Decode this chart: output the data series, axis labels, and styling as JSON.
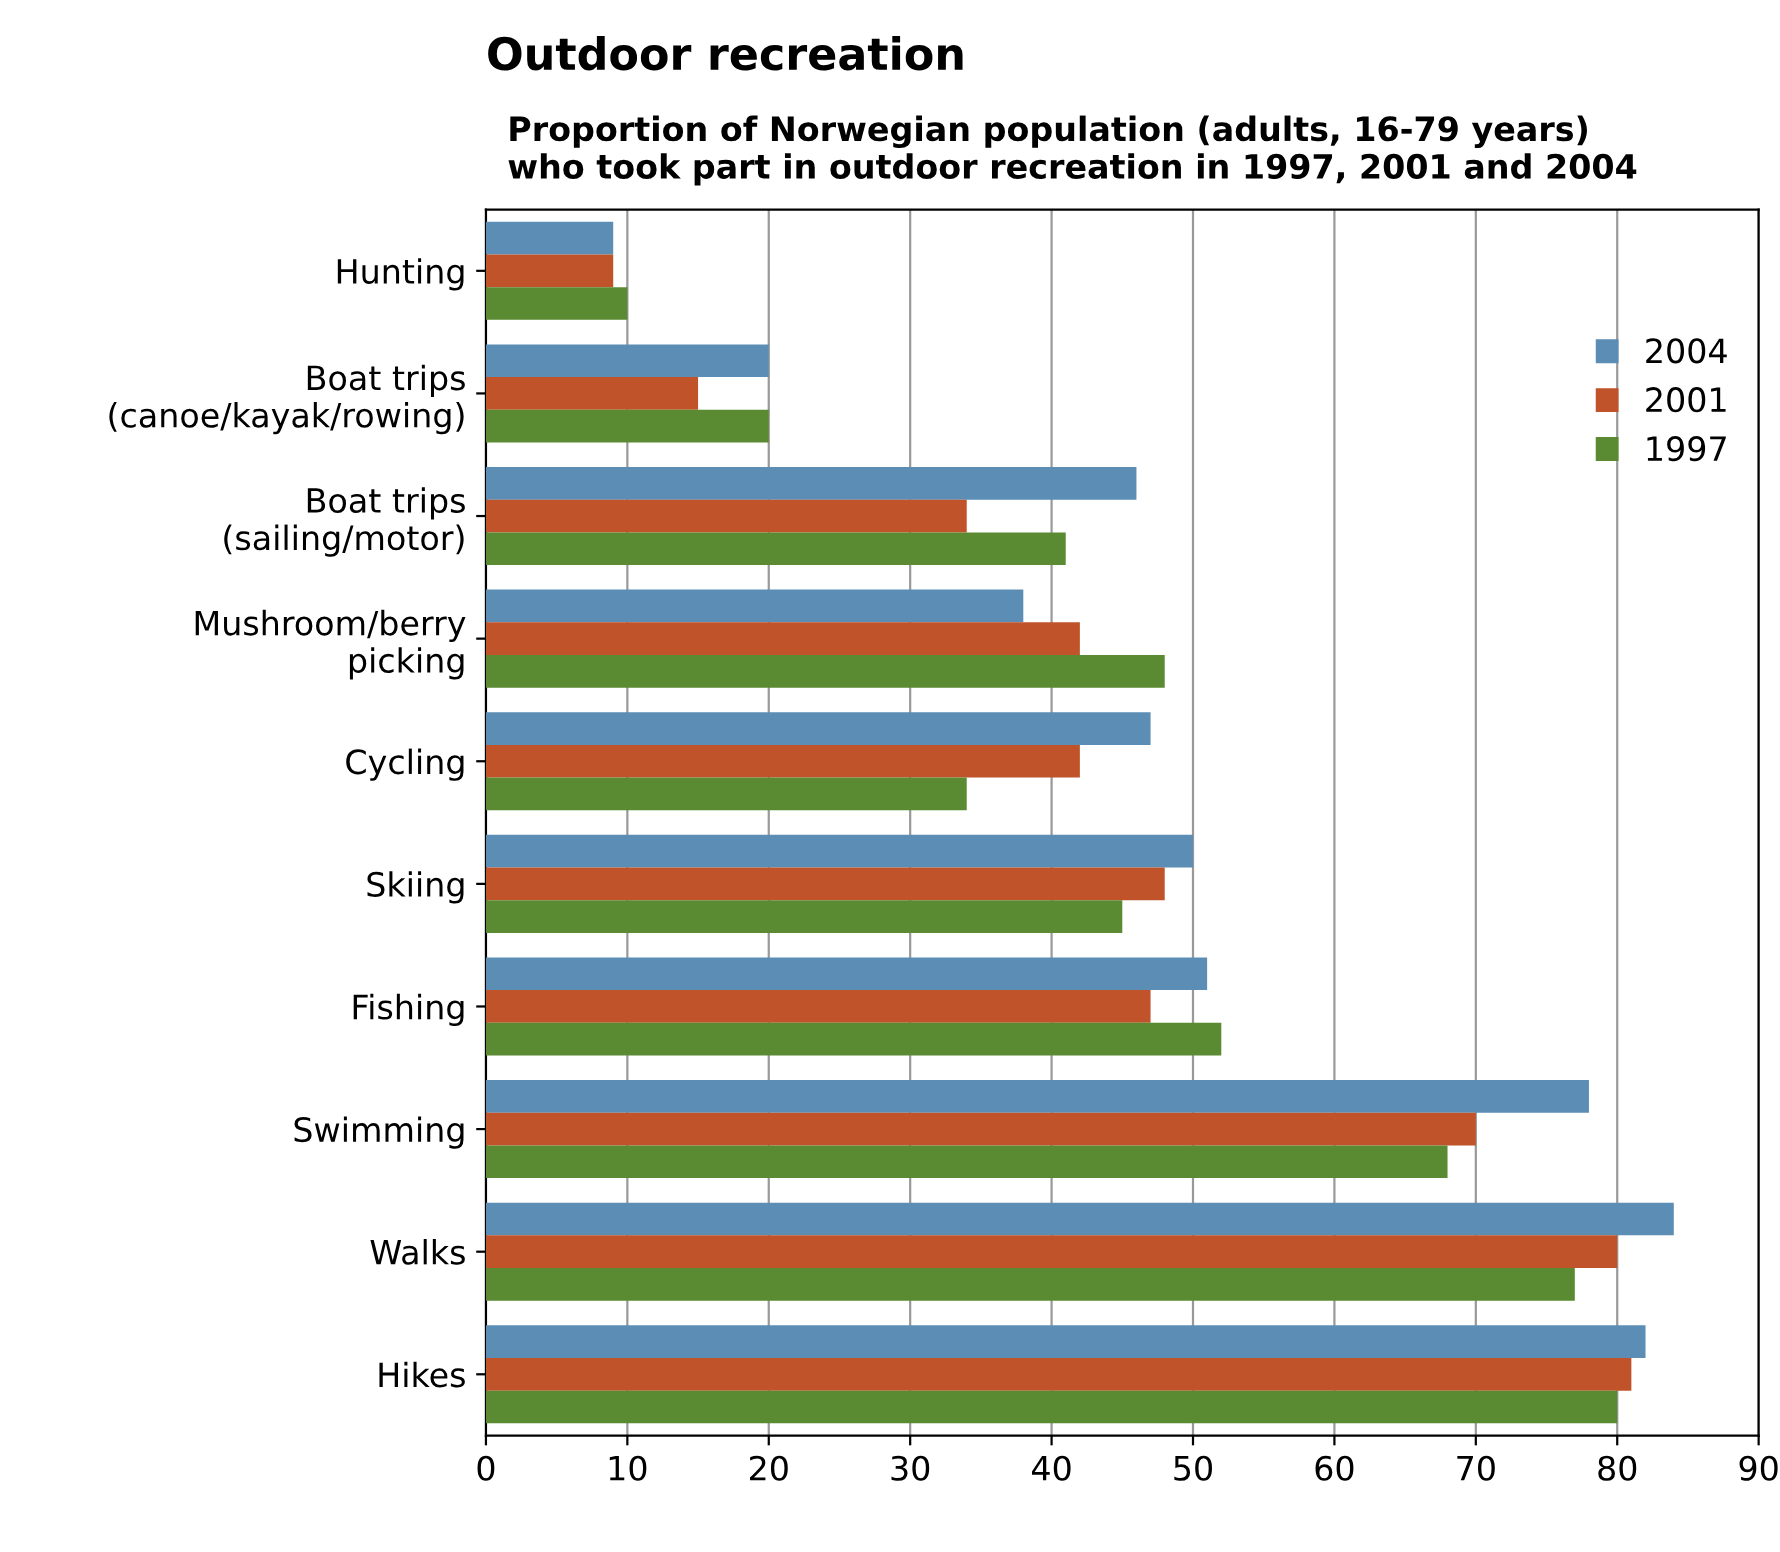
{
  "chart_data": {
    "type": "bar",
    "orientation": "horizontal",
    "title": "Outdoor recreation",
    "subtitle": "Proportion of Norwegian population (adults, 16-79 years)\nwho took part in outdoor recreation in 1997, 2001 and 2004",
    "categories": [
      "Hunting",
      "Boat trips\n(canoe/kayak/rowing)",
      "Boat trips\n(sailing/motor)",
      "Mushroom/berry\npicking",
      "Cycling",
      "Skiing",
      "Fishing",
      "Swimming",
      "Walks",
      "Hikes"
    ],
    "series": [
      {
        "name": "2004",
        "color": "#5b8db5",
        "values": [
          9,
          20,
          46,
          38,
          47,
          50,
          51,
          78,
          84,
          82
        ]
      },
      {
        "name": "2001",
        "color": "#c0532a",
        "values": [
          9,
          15,
          34,
          42,
          42,
          48,
          47,
          70,
          80,
          81
        ]
      },
      {
        "name": "1997",
        "color": "#5a8a32",
        "values": [
          10,
          20,
          41,
          48,
          34,
          45,
          52,
          68,
          77,
          80
        ]
      }
    ],
    "xlim": [
      0,
      90
    ],
    "xticks": [
      0,
      10,
      20,
      30,
      40,
      50,
      60,
      70,
      80,
      90
    ],
    "grid": "x",
    "legend": "top right"
  }
}
